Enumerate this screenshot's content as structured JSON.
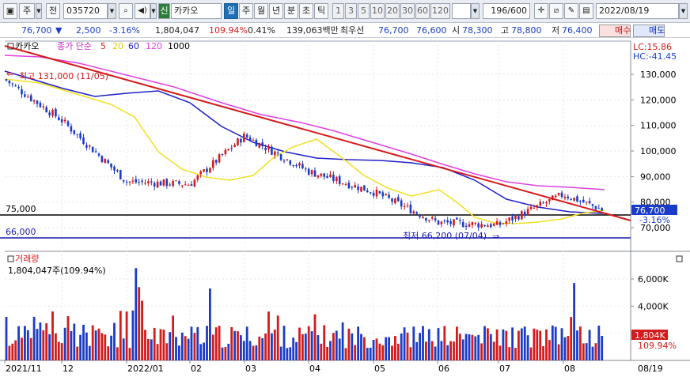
{
  "toolbar": {
    "market_label": "주",
    "period_label": "전",
    "code": "035720",
    "name_badge": "신",
    "stock_name": "카카오",
    "period_tabs": [
      "일",
      "주",
      "월",
      "년",
      "분",
      "초",
      "틱"
    ],
    "interval_buttons": [
      "1",
      "3",
      "5",
      "10",
      "20",
      "30",
      "60",
      "120"
    ],
    "count": "196",
    "total": "/600",
    "date": "2022/08/19"
  },
  "quote": {
    "price": "76,700",
    "change_arrow": "▼",
    "change": "2,500",
    "change_pct": "-3.16%",
    "volume": "1,804,047",
    "volume_ratio": "109.94%",
    "turnover_pct": "0.41%",
    "amount": "139,063백만",
    "best_ask_label": "최우선",
    "best_ask": "76,700",
    "best_bid": "76,600",
    "open_label": "시",
    "open": "78,300",
    "high_label": "고",
    "high": "78,800",
    "low_label": "저",
    "low": "76,400",
    "buy_label": "매수",
    "sell_label": "매도"
  },
  "price_panel": {
    "legend_name": "카카오",
    "legend_ma_label": "종가 단순",
    "ma_periods": [
      {
        "label": "5",
        "color": "#d02020"
      },
      {
        "label": "20",
        "color": "#f0e020"
      },
      {
        "label": "60",
        "color": "#1f1fc8"
      },
      {
        "label": "120",
        "color": "#e040e0"
      },
      {
        "label": "1000",
        "color": "#000000"
      }
    ],
    "lc_text": "LC:15.86",
    "hc_text": "HC:-41.45",
    "high_annotation": "최고 131,000 (11/05)",
    "low_annotation": "최저 66,200 (07/04)",
    "hline_top_label": "75,000",
    "hline_bottom_label": "66,000",
    "y_ticks": [
      "130,000",
      "120,000",
      "110,000",
      "100,000",
      "90,000",
      "80,000",
      "70,000"
    ],
    "current_price_tag": "76,700",
    "current_pct_tag": "-3.16%"
  },
  "volume_panel": {
    "title": "거래량",
    "value_text": "1,804,047주(109.94%)",
    "y_ticks": [
      "6,000K",
      "4,000K",
      "2,000K"
    ],
    "current_tag": "1,804K",
    "current_pct_tag": "109.94%"
  },
  "x_axis": {
    "labels": [
      "2021/11",
      "12",
      "2022/01",
      "02",
      "03",
      "04",
      "05",
      "06",
      "07",
      "08"
    ],
    "right_label": "08/19"
  },
  "colors": {
    "up": "#d41a1a",
    "down": "#1a3cc8",
    "ma5": "#d02020",
    "ma20": "#f0e020",
    "ma60": "#1f1fc8",
    "ma120": "#e040e0",
    "trendline": "#d41a1a",
    "support_line": "#1a1ab0"
  },
  "chart_data": {
    "type": "candlestick",
    "period": "daily",
    "x_range": [
      "2021/11",
      "2022/08/19"
    ],
    "price_ylim": [
      65000,
      136000
    ],
    "volume_ylim_k": [
      0,
      7000
    ],
    "price_path_anchors": [
      {
        "month": "2021/11",
        "close": 128000
      },
      {
        "month": "12",
        "close": 112000
      },
      {
        "month": "2022/01",
        "close": 88000
      },
      {
        "month": "02",
        "close": 87000
      },
      {
        "month": "03",
        "close": 106000
      },
      {
        "month": "04",
        "close": 92000
      },
      {
        "month": "05",
        "close": 84000
      },
      {
        "month": "06",
        "close": 72000
      },
      {
        "month": "07",
        "close": 71000
      },
      {
        "month": "08",
        "close": 83000
      },
      {
        "month": "08/19",
        "close": 76700
      }
    ],
    "horizontal_lines": [
      75000,
      66000
    ],
    "annotations": [
      {
        "text": "최고 131,000 (11/05)",
        "value": 131000
      },
      {
        "text": "최저 66,200 (07/04)",
        "value": 66200
      }
    ],
    "last_volume_k": 1804
  }
}
